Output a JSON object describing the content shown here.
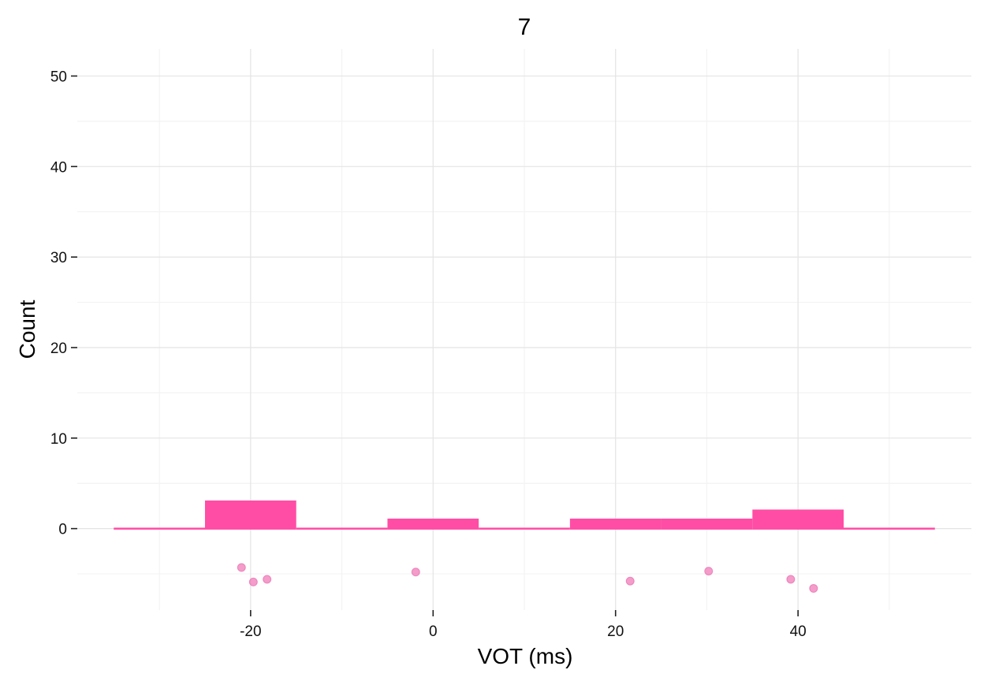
{
  "chart_data": {
    "type": "bar",
    "title": "7",
    "xlabel": "VOT (ms)",
    "ylabel": "Count",
    "xlim": [
      -39,
      59
    ],
    "ylim": [
      -9,
      53
    ],
    "x_ticks": [
      -20,
      0,
      20,
      40
    ],
    "y_ticks": [
      0,
      10,
      20,
      30,
      40,
      50
    ],
    "grid": true,
    "bar_color": "#FF4DA5",
    "point_color": "#F07BB8",
    "bins": [
      {
        "start": -35,
        "end": -25,
        "count": 0
      },
      {
        "start": -25,
        "end": -15,
        "count": 3
      },
      {
        "start": -15,
        "end": -5,
        "count": 0
      },
      {
        "start": -5,
        "end": 5,
        "count": 1
      },
      {
        "start": 5,
        "end": 15,
        "count": 0
      },
      {
        "start": 15,
        "end": 25,
        "count": 1
      },
      {
        "start": 25,
        "end": 35,
        "count": 1
      },
      {
        "start": 35,
        "end": 45,
        "count": 2
      },
      {
        "start": 45,
        "end": 55,
        "count": 0
      }
    ],
    "points": [
      {
        "x": -21.0,
        "y": -4.3
      },
      {
        "x": -19.7,
        "y": -5.9
      },
      {
        "x": -18.2,
        "y": -5.6
      },
      {
        "x": -1.9,
        "y": -4.8
      },
      {
        "x": 21.6,
        "y": -5.8
      },
      {
        "x": 30.2,
        "y": -4.7
      },
      {
        "x": 39.2,
        "y": -5.6
      },
      {
        "x": 41.7,
        "y": -6.6
      }
    ]
  }
}
